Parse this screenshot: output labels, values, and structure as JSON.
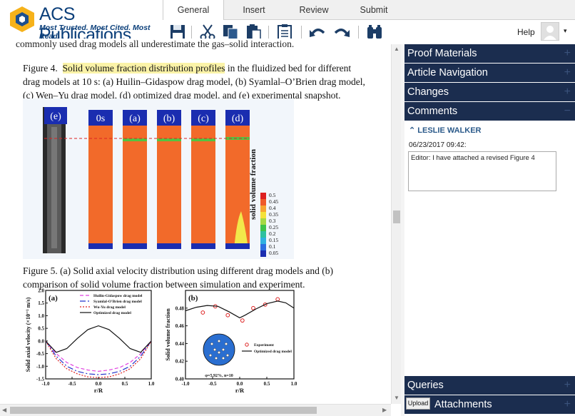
{
  "logo": {
    "name": "ACS Publications",
    "tagline": "Most Trusted. Most Cited. Most Read."
  },
  "tabs": [
    "General",
    "Insert",
    "Review",
    "Submit"
  ],
  "toolbar": {
    "help_label": "Help"
  },
  "document": {
    "top_line": "commonly used drag models all underestimate the gas–solid interaction.",
    "fig4_caption_prefix": "Figure 4.",
    "fig4_caption_highlight": "Solid volume fraction distribution profiles",
    "fig4_caption_rest_1": " in the fluidized bed for different",
    "fig4_caption_line2": "drag models at 10 s: (a) Huilin–Gidaspow drag model, (b) Syamlal–O’Brien drag model,",
    "fig4_caption_line3": "(c) Wen–Yu drag model, (d) optimized drag model, and (e) experimental snapshot.",
    "fig4_labels": {
      "e": "(e)",
      "t0": "0s",
      "a": "(a)",
      "b": "(b)",
      "c": "(c)",
      "d": "(d)"
    },
    "fig4_colorbar_title": "solid volume fraction",
    "fig4_colorbar_ticks": [
      "0.5",
      "0.45",
      "0.4",
      "0.35",
      "0.3",
      "0.25",
      "0.2",
      "0.15",
      "0.1",
      "0.05"
    ],
    "fig5_caption_line1": "Figure 5.   (a) Solid axial velocity distribution using different drag models and (b)",
    "fig5_caption_line2": "comparison of solid volume fraction between simulation and experiment."
  },
  "sidebar": {
    "panels": [
      "Proof Materials",
      "Article Navigation",
      "Changes",
      "Comments"
    ],
    "comment_user": "LESLIE WALKER",
    "comment_date": "06/23/2017 09:42:",
    "comment_text": "Editor: I have attached a revised Figure 4",
    "queries_label": "Queries",
    "upload_label": "Upload",
    "attachments_label": "Attachments"
  },
  "chart_data": [
    {
      "type": "line",
      "title": "(a)",
      "xlabel": "r/R",
      "ylabel": "Solid axial velocity (×10⁻¹ m/s)",
      "xlim": [
        -1.0,
        1.0
      ],
      "ylim": [
        -1.5,
        2.0
      ],
      "xticks": [
        "-1.0",
        "-0.5",
        "0.0",
        "0.5",
        "1.0"
      ],
      "yticks": [
        "2.0",
        "1.5",
        "1.0",
        "0.5",
        "0.0",
        "-0.5",
        "-1.0",
        "-1.5"
      ],
      "legend": "top-right",
      "series": [
        {
          "name": "Huilin-Gidaspow drag model",
          "color": "#e040e0",
          "dash": "5,3",
          "x": [
            -1.0,
            -0.8,
            -0.6,
            -0.4,
            -0.2,
            0.0,
            0.2,
            0.4,
            0.6,
            0.8,
            1.0
          ],
          "y": [
            0.0,
            -0.5,
            -0.85,
            -1.05,
            -1.15,
            -1.2,
            -1.15,
            -1.05,
            -0.85,
            -0.5,
            0.0
          ]
        },
        {
          "name": "Syamlal-O'Brien drag model",
          "color": "#2233cc",
          "dash": "8,3,2,3",
          "x": [
            -1.0,
            -0.8,
            -0.6,
            -0.4,
            -0.2,
            0.0,
            0.2,
            0.4,
            0.6,
            0.8,
            1.0
          ],
          "y": [
            0.0,
            -0.6,
            -1.0,
            -1.2,
            -1.3,
            -1.33,
            -1.3,
            -1.2,
            -1.0,
            -0.6,
            0.0
          ]
        },
        {
          "name": "Wu-Yu drag model",
          "color": "#dd2222",
          "dash": "2,2",
          "x": [
            -1.0,
            -0.8,
            -0.6,
            -0.4,
            -0.2,
            0.0,
            0.2,
            0.4,
            0.6,
            0.8,
            1.0
          ],
          "y": [
            0.0,
            -0.7,
            -1.1,
            -1.3,
            -1.42,
            -1.45,
            -1.42,
            -1.3,
            -1.1,
            -0.7,
            0.0
          ]
        },
        {
          "name": "Optimized drag model",
          "color": "#111111",
          "dash": "",
          "x": [
            -1.0,
            -0.8,
            -0.6,
            -0.4,
            -0.2,
            0.0,
            0.2,
            0.4,
            0.6,
            0.8,
            1.0
          ],
          "y": [
            0.0,
            -0.45,
            -0.3,
            0.1,
            0.45,
            0.6,
            0.45,
            0.1,
            -0.3,
            -0.45,
            0.0
          ]
        }
      ]
    },
    {
      "type": "scatter",
      "title": "(b)",
      "xlabel": "r/R",
      "ylabel": "Solid volume fraction",
      "xlim": [
        -1.0,
        1.0
      ],
      "ylim": [
        0.4,
        0.5
      ],
      "xticks": [
        "-1.0",
        "-0.5",
        "0.0",
        "0.5",
        "1.0"
      ],
      "yticks": [
        "0.48",
        "0.46",
        "0.44",
        "0.42",
        "0.40"
      ],
      "legend": "bottom-right",
      "inset_label": "φ=5.92%, n=10",
      "series": [
        {
          "name": "Experiment",
          "color": "#dd2222",
          "marker": "circle",
          "x": [
            -0.68,
            -0.45,
            -0.22,
            0.05,
            0.25,
            0.47,
            0.7
          ],
          "y": [
            0.475,
            0.482,
            0.472,
            0.466,
            0.48,
            0.484,
            0.49
          ]
        },
        {
          "name": "Optimized drag model",
          "color": "#111111",
          "marker": "",
          "x": [
            -1.0,
            -0.8,
            -0.6,
            -0.4,
            -0.2,
            0.0,
            0.1,
            0.3,
            0.5,
            0.7,
            0.85,
            1.0
          ],
          "y": [
            0.477,
            0.481,
            0.483,
            0.482,
            0.476,
            0.469,
            0.472,
            0.479,
            0.485,
            0.488,
            0.486,
            0.48
          ]
        }
      ]
    }
  ]
}
